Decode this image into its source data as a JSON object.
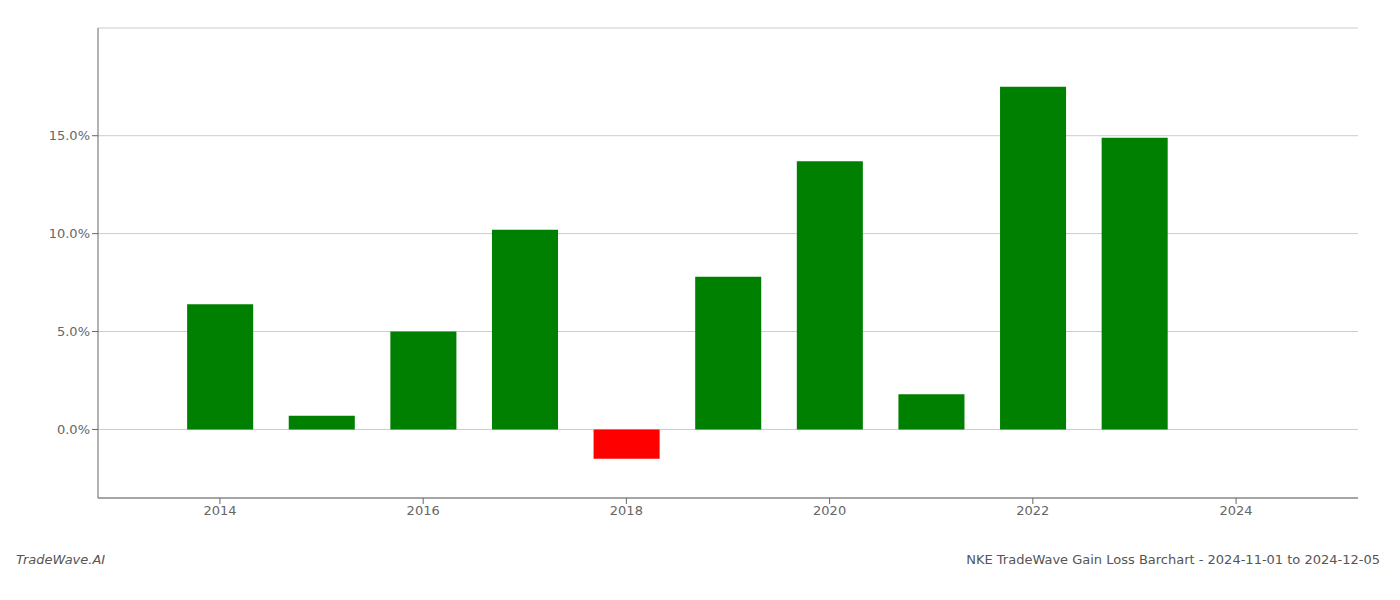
{
  "chart_data": {
    "type": "bar",
    "title": "NKE TradeWave Gain Loss Barchart - 2024-11-01 to 2024-12-05",
    "annotations": [
      "TradeWave.AI"
    ],
    "x": [
      2014,
      2015,
      2016,
      2017,
      2018,
      2019,
      2020,
      2021,
      2022,
      2023
    ],
    "values": [
      0.064,
      0.007,
      0.05,
      0.102,
      -0.015,
      0.078,
      0.137,
      0.018,
      0.175,
      0.149
    ],
    "colors": [
      "#008000",
      "#008000",
      "#008000",
      "#008000",
      "#ff0000",
      "#008000",
      "#008000",
      "#008000",
      "#008000",
      "#008000"
    ],
    "xlim": [
      2012.8,
      2025.2
    ],
    "xticks": [
      2014,
      2016,
      2018,
      2020,
      2022,
      2024
    ],
    "ylim": [
      -0.035,
      0.205
    ],
    "yticks": [
      {
        "value": 0.0,
        "label": "0.0%"
      },
      {
        "value": 0.05,
        "label": "5.0%"
      },
      {
        "value": 0.1,
        "label": "10.0%"
      },
      {
        "value": 0.15,
        "label": "15.0%"
      }
    ],
    "grid": true
  }
}
